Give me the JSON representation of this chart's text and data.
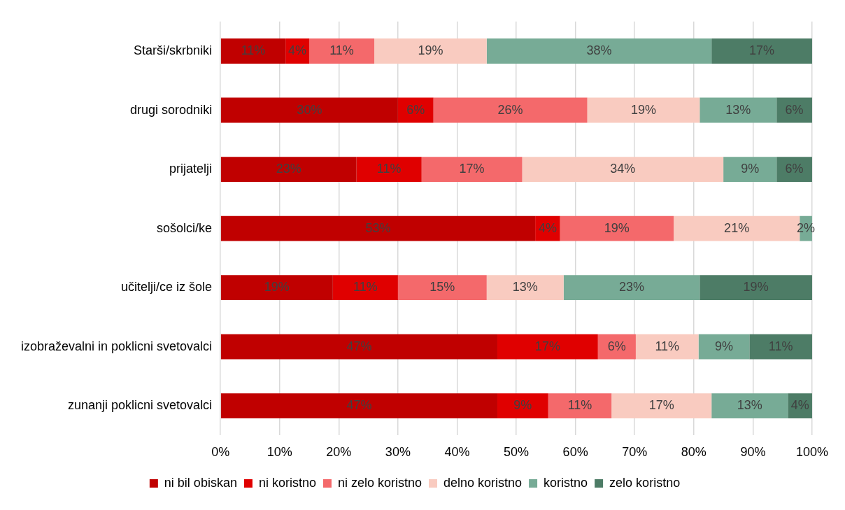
{
  "chart_data": {
    "type": "bar",
    "orientation": "horizontal",
    "stacked": true,
    "categories": [
      "Starši/skrbniki",
      "drugi sorodniki",
      "prijatelji",
      "sošolci/ke",
      "učitelji/ce iz šole",
      "izobraževalni in poklicni svetovalci",
      "zunanji poklicni svetovalci"
    ],
    "series": [
      {
        "name": "ni bil obiskan",
        "color": "#c00000",
        "values": [
          11,
          30,
          23,
          53.2,
          19,
          46.8,
          46.8
        ],
        "value_labels": [
          "11%",
          "30%",
          "23%",
          "53%",
          "19%",
          "47%",
          "47%"
        ]
      },
      {
        "name": "ni koristno",
        "color": "#e00000",
        "values": [
          4,
          6,
          11,
          4.2,
          11,
          17.0,
          8.6
        ],
        "value_labels": [
          "4%",
          "6%",
          "11%",
          "4%",
          "11%",
          "17%",
          "9%"
        ]
      },
      {
        "name": "ni zelo koristno",
        "color": "#f4696b",
        "values": [
          11,
          26,
          17,
          19.2,
          15,
          6.4,
          10.7
        ],
        "value_labels": [
          "11%",
          "26%",
          "17%",
          "19%",
          "15%",
          "6%",
          "11%"
        ]
      },
      {
        "name": "delno koristno",
        "color": "#f9cbc0",
        "values": [
          19,
          19,
          34,
          21.3,
          13,
          10.6,
          16.9
        ],
        "value_labels": [
          "19%",
          "19%",
          "34%",
          "21%",
          "13%",
          "11%",
          "17%"
        ]
      },
      {
        "name": "koristno",
        "color": "#77ab96",
        "values": [
          38,
          13,
          9,
          2.1,
          23,
          8.6,
          12.9
        ],
        "value_labels": [
          "38%",
          "13%",
          "9%",
          "2%",
          "23%",
          "9%",
          "13%"
        ]
      },
      {
        "name": "zelo koristno",
        "color": "#4d7c66",
        "values": [
          17,
          6,
          6,
          0,
          19,
          10.6,
          4.1
        ],
        "value_labels": [
          "17%",
          "6%",
          "6%",
          null,
          "19%",
          "11%",
          "4%"
        ]
      }
    ],
    "xlim": [
      0,
      100
    ],
    "xticks": [
      {
        "value": 0,
        "label": "0%"
      },
      {
        "value": 10,
        "label": "10%"
      },
      {
        "value": 20,
        "label": "20%"
      },
      {
        "value": 30,
        "label": "30%"
      },
      {
        "value": 40,
        "label": "40%"
      },
      {
        "value": 50,
        "label": "50%"
      },
      {
        "value": 60,
        "label": "60%"
      },
      {
        "value": 70,
        "label": "70%"
      },
      {
        "value": 80,
        "label": "80%"
      },
      {
        "value": 90,
        "label": "90%"
      },
      {
        "value": 100,
        "label": "100%"
      }
    ],
    "grid": "x",
    "legend": "bottom"
  }
}
